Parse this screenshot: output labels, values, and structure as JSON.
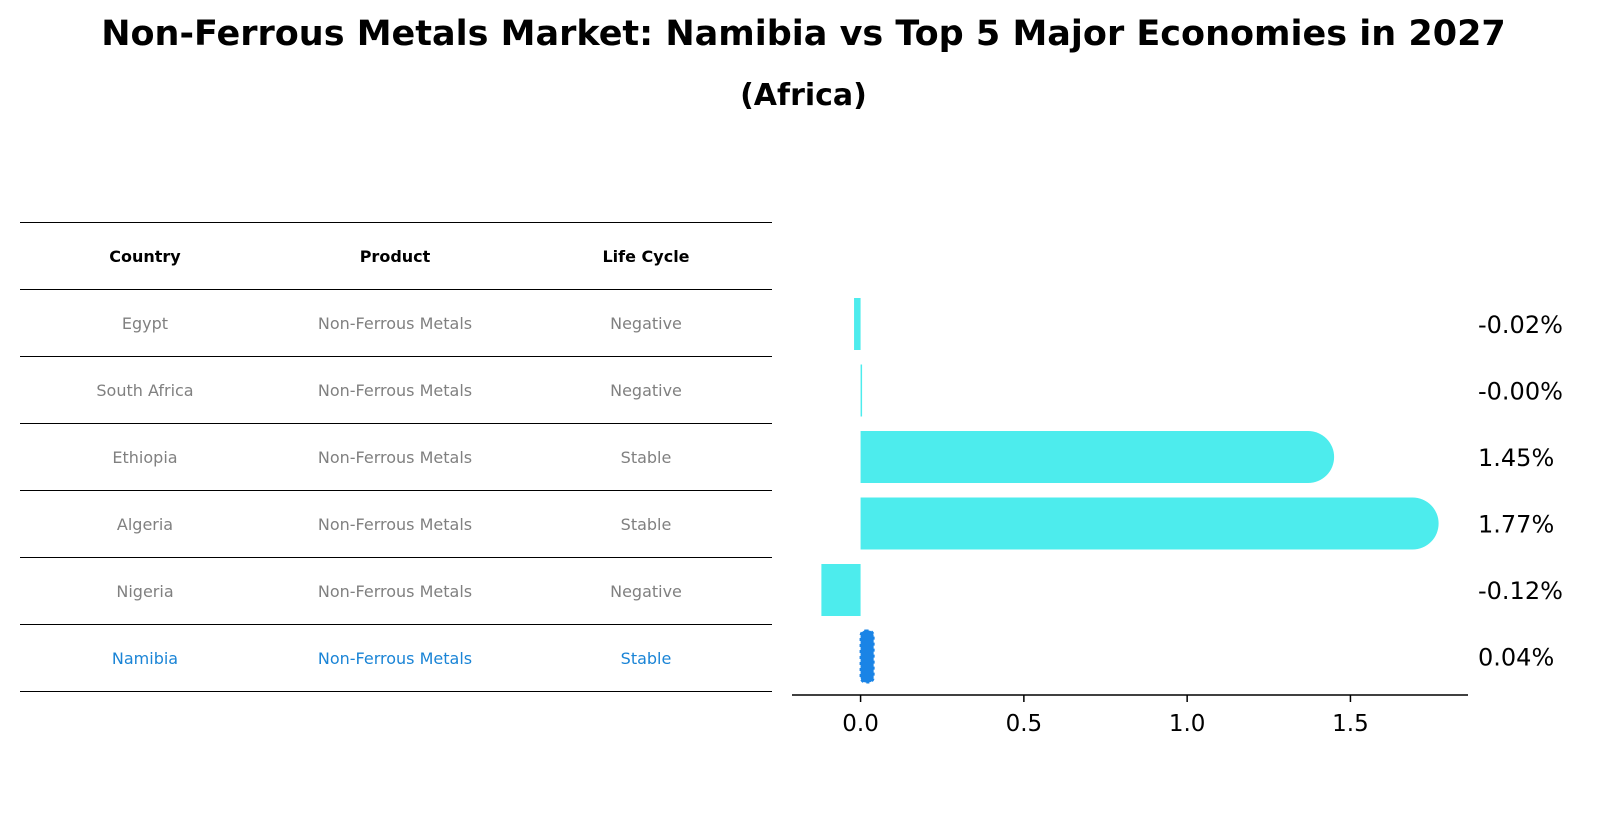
{
  "header": {
    "title": "Non-Ferrous Metals Market: Namibia vs Top 5 Major Economies in 2027",
    "subtitle": "(Africa)"
  },
  "table": {
    "columns": [
      "Country",
      "Product",
      "Life Cycle"
    ],
    "rows": [
      {
        "country": "Egypt",
        "product": "Non-Ferrous Metals",
        "life_cycle": "Negative"
      },
      {
        "country": "South Africa",
        "product": "Non-Ferrous Metals",
        "life_cycle": "Negative"
      },
      {
        "country": "Ethiopia",
        "product": "Non-Ferrous Metals",
        "life_cycle": "Stable"
      },
      {
        "country": "Algeria",
        "product": "Non-Ferrous Metals",
        "life_cycle": "Stable"
      },
      {
        "country": "Nigeria",
        "product": "Non-Ferrous Metals",
        "life_cycle": "Negative"
      },
      {
        "country": "Namibia",
        "product": "Non-Ferrous Metals",
        "life_cycle": "Stable"
      }
    ]
  },
  "chart_data": {
    "type": "bar",
    "orientation": "horizontal",
    "title": "Non-Ferrous Metals Market: Namibia vs Top 5 Major Economies in 2027",
    "subtitle": "(Africa)",
    "categories": [
      "Egypt",
      "South Africa",
      "Ethiopia",
      "Algeria",
      "Nigeria",
      "Namibia"
    ],
    "values": [
      -0.02,
      -0.0,
      1.45,
      1.77,
      -0.12,
      0.04
    ],
    "value_labels": [
      "-0.02%",
      "-0.00%",
      "1.45%",
      "1.77%",
      "-0.12%",
      "0.04%"
    ],
    "highlight": "Namibia",
    "xlim": [
      -0.21,
      1.86
    ],
    "xticks": [
      0.0,
      0.5,
      1.0,
      1.5
    ],
    "xtick_labels": [
      "0.0",
      "0.5",
      "1.0",
      "1.5"
    ],
    "xlabel": "",
    "ylabel": "",
    "colors": {
      "bar": "#4deced",
      "highlight": "#1a84e6",
      "highlight_text": "#1a84d6",
      "muted_text": "#808080"
    }
  }
}
